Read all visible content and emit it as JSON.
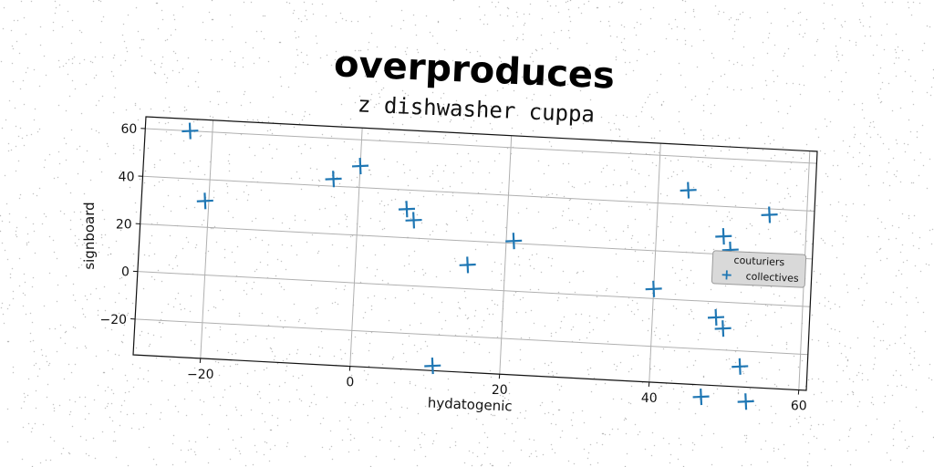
{
  "chart_data": {
    "type": "scatter",
    "title": "overproduces",
    "subtitle": "z dishwasher cuppa",
    "xlabel": "hydatogenic",
    "ylabel": "signboard",
    "xlim": [
      -29,
      61
    ],
    "ylim": [
      -35,
      65
    ],
    "xticks": [
      -20,
      0,
      20,
      40,
      60
    ],
    "yticks": [
      -20,
      0,
      20,
      40,
      60
    ],
    "xtick_labels": [
      "−20",
      "0",
      "20",
      "40",
      "60"
    ],
    "ytick_labels": [
      "−20",
      "0",
      "20",
      "40",
      "60"
    ],
    "grid": true,
    "legend": {
      "title": "couturiers",
      "placement": "right",
      "entries": [
        "collectives"
      ]
    },
    "series": [
      {
        "name": "collectives",
        "marker": "plus",
        "color": "#1f77b4",
        "x": [
          -23,
          -20.5,
          -3.5,
          0,
          6.5,
          7.5,
          15,
          21,
          11,
          40,
          44,
          49,
          50,
          55,
          58.5,
          48.5,
          49.5,
          52,
          47,
          53
        ],
        "y": [
          60,
          31,
          43,
          49,
          32,
          27.5,
          10,
          21,
          -33,
          4,
          46,
          27.5,
          22,
          37.5,
          16.5,
          -6.5,
          -11,
          -26.5,
          -40,
          -41
        ]
      }
    ]
  },
  "colors": {
    "marker": "#1f77b4",
    "grid": "#b0b0b0",
    "legend_bg": "#d9d9d9"
  }
}
